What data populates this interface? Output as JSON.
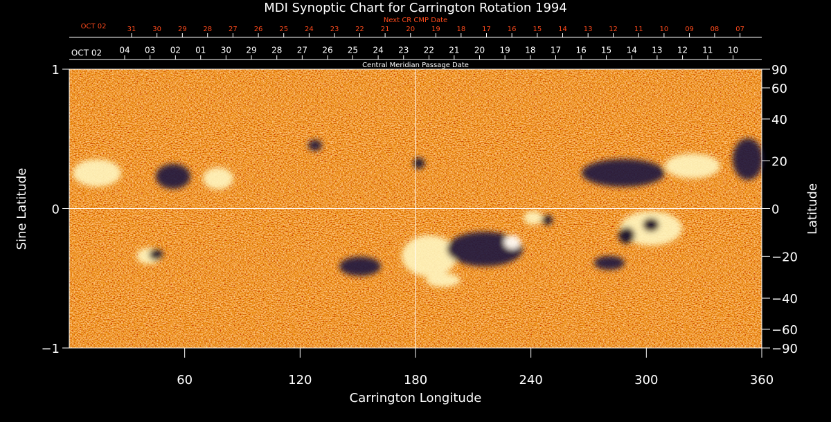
{
  "chart_data": {
    "type": "synoptic-map",
    "title": "MDI Synoptic Chart for Carrington Rotation 1994",
    "xlabel": "Carrington Longitude",
    "ylabel": "Sine Latitude",
    "y2label": "Latitude",
    "xlim": [
      0,
      360
    ],
    "xticks": [
      60,
      120,
      180,
      240,
      300,
      360
    ],
    "ylim": [
      -1,
      1
    ],
    "yticks": [
      {
        "value": -1,
        "label": "−1"
      },
      0,
      1
    ],
    "y2lim": [
      -90,
      90
    ],
    "y2scale": "sine",
    "y2ticks": [
      90,
      60,
      40,
      20,
      0,
      {
        "value": -20,
        "label": "−20"
      },
      {
        "value": -40,
        "label": "−40"
      },
      {
        "value": -60,
        "label": "−60"
      },
      {
        "value": -90,
        "label": "−90"
      }
    ],
    "x2_axes": [
      {
        "label": "Next CR CMP Date",
        "color": "#ff4a1c",
        "start_label": "OCT 02",
        "ticks": [
          {
            "value": 32.4,
            "label": "31"
          },
          {
            "value": 45.6,
            "label": "30"
          },
          {
            "value": 58.8,
            "label": "29"
          },
          {
            "value": 71.9,
            "label": "28"
          },
          {
            "value": 85.1,
            "label": "27"
          },
          {
            "value": 98.3,
            "label": "26"
          },
          {
            "value": 111.5,
            "label": "25"
          },
          {
            "value": 124.7,
            "label": "24"
          },
          {
            "value": 137.9,
            "label": "23"
          },
          {
            "value": 151.0,
            "label": "22"
          },
          {
            "value": 164.2,
            "label": "21"
          },
          {
            "value": 177.4,
            "label": "20"
          },
          {
            "value": 190.6,
            "label": "19"
          },
          {
            "value": 203.7,
            "label": "18"
          },
          {
            "value": 216.9,
            "label": "17"
          },
          {
            "value": 230.1,
            "label": "16"
          },
          {
            "value": 243.3,
            "label": "15"
          },
          {
            "value": 256.5,
            "label": "14"
          },
          {
            "value": 269.7,
            "label": "13"
          },
          {
            "value": 282.8,
            "label": "12"
          },
          {
            "value": 296.0,
            "label": "11"
          },
          {
            "value": 309.2,
            "label": "10"
          },
          {
            "value": 322.4,
            "label": "09"
          },
          {
            "value": 335.5,
            "label": "08"
          },
          {
            "value": 348.7,
            "label": "07"
          }
        ]
      },
      {
        "label": "Central Meridian Passage Date",
        "color": "#ffffff",
        "start_label": "OCT 02",
        "ticks": [
          {
            "value": 28.8,
            "label": "04"
          },
          {
            "value": 42.0,
            "label": "03"
          },
          {
            "value": 55.2,
            "label": "02"
          },
          {
            "value": 68.3,
            "label": "01"
          },
          {
            "value": 81.5,
            "label": "30"
          },
          {
            "value": 94.7,
            "label": "29"
          },
          {
            "value": 107.9,
            "label": "28"
          },
          {
            "value": 121.1,
            "label": "27"
          },
          {
            "value": 134.3,
            "label": "26"
          },
          {
            "value": 147.4,
            "label": "25"
          },
          {
            "value": 160.6,
            "label": "24"
          },
          {
            "value": 173.8,
            "label": "23"
          },
          {
            "value": 187.0,
            "label": "22"
          },
          {
            "value": 200.1,
            "label": "21"
          },
          {
            "value": 213.3,
            "label": "20"
          },
          {
            "value": 226.5,
            "label": "19"
          },
          {
            "value": 239.7,
            "label": "18"
          },
          {
            "value": 252.9,
            "label": "17"
          },
          {
            "value": 266.1,
            "label": "16"
          },
          {
            "value": 279.2,
            "label": "15"
          },
          {
            "value": 292.4,
            "label": "14"
          },
          {
            "value": 305.6,
            "label": "13"
          },
          {
            "value": 318.8,
            "label": "12"
          },
          {
            "value": 331.9,
            "label": "11"
          },
          {
            "value": 345.1,
            "label": "10"
          }
        ]
      }
    ]
  }
}
